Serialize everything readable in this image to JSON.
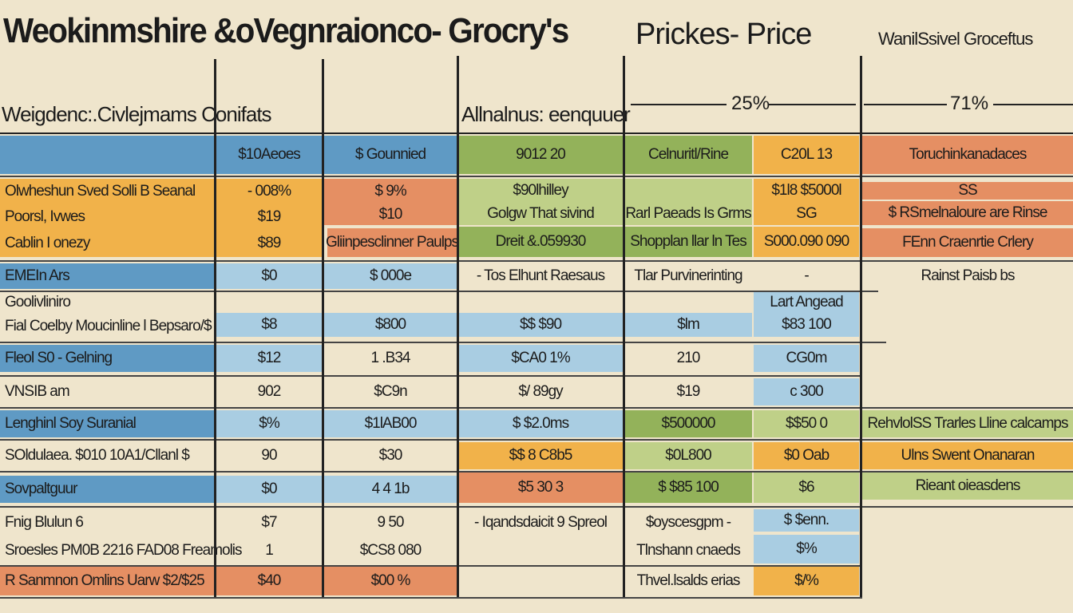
{
  "header": {
    "title": "Weokinmshire &oVegnraionco- Grocry's",
    "title_prices": "Prickes- Price",
    "title_right": "WanilSsivel Groceftus",
    "subhead_left": "Weigdenc:.Civlejmams Conifats",
    "subhead_mid": "Allnalnus: eenquuer",
    "pct_a": "25%",
    "pct_b": "71%"
  },
  "table": {
    "column_headers": [
      "$10Aeoes",
      "$ Gounnied",
      "9012 20",
      "Celnuritl/Rine",
      "C20L 13",
      "Toruchinkanadaces"
    ],
    "rows": [
      {
        "label": "Olwheshun Sved Solli B Seanal",
        "cells": [
          "- 008%",
          "$ 9%",
          "$90lhilley",
          "",
          "$1l8 $5000l",
          "SS"
        ]
      },
      {
        "label": "Poorsl, Ivwes",
        "cells": [
          "$19",
          "$10",
          "Golgw That sivind",
          "Rarl Paeads Is Grms",
          "SG",
          "$ RSmelnaloure are Rinse"
        ]
      },
      {
        "label": "Cablin I onezy",
        "cells": [
          "$89",
          "Gliinpesclinner Paulps",
          "Dreit &.059930",
          "Shopplan llar ln Tes",
          "S000.090 090",
          "FEnn Craenrtie Crlery"
        ]
      },
      {
        "label": "EMEIn Ars",
        "cells": [
          "$0",
          "$ 000e",
          "- Tos Elhunt Raesaus",
          "Tlar Purvinerinting",
          "-",
          "Rainst Paisb bs"
        ]
      },
      {
        "label": "Goolivliniro",
        "cells": [
          "",
          "",
          "",
          "",
          "Lart Angead",
          ""
        ]
      },
      {
        "label": "Fial Coelby Moucinline l Bepsaro/$",
        "cells": [
          "$8",
          "$800",
          "$$ $90",
          "$lm",
          "$83 100",
          ""
        ]
      },
      {
        "label": "Fleol S0 - Gelning",
        "cells": [
          "$12",
          "1 .B34",
          "$CA0 1%",
          "210",
          "CG0m",
          ""
        ]
      },
      {
        "label": "VNSIB am",
        "cells": [
          "902",
          "$C9n",
          "$/ 89gy",
          "$19",
          "c 300",
          ""
        ]
      },
      {
        "label": "Lenghinl Soy Suranial",
        "cells": [
          "$%",
          "$1lAB00",
          "$ $2.0ms",
          "$500000",
          "$$50 0",
          "RehvlolSS Trarles Lline calcamps"
        ]
      },
      {
        "label": "SOldulaea. $010 10A1/Cllanl $",
        "cells": [
          "90",
          "$30",
          "$$ 8 C8b5",
          "$0L800",
          "$0 Oab",
          "Ulns Swent Onanaran"
        ]
      },
      {
        "label": "Sovpaltguur",
        "cells": [
          "$0",
          "4 4 1b",
          "$5 30 3",
          "$ $85 100",
          "$6",
          "Rieant oieasdens"
        ]
      },
      {
        "label": "Fnig Blulun 6",
        "cells": [
          "$7",
          "9 50",
          "- Iqandsdaicit 9 Spreol",
          "$oyscesgpm -",
          "$ $enn.",
          ""
        ]
      },
      {
        "label": "Sroesles PM0B 2216 FAD08 Freamolis",
        "cells": [
          "1",
          "$CS8 080",
          "",
          "Tlnshann cnaeds",
          "$%",
          ""
        ]
      },
      {
        "label": "R Sanmnon Omlins Uarw $2/$25",
        "cells": [
          "$40",
          "$00 %",
          "",
          "Thvel.lsalds erias",
          "$/%",
          ""
        ]
      }
    ]
  },
  "colors": {
    "background": "#efe5cc",
    "blue": "#5f9ac4",
    "light_blue": "#a9cde2",
    "orange": "#f1b24a",
    "salmon": "#e58f63",
    "green": "#93b25a",
    "light_green": "#bfd088"
  }
}
